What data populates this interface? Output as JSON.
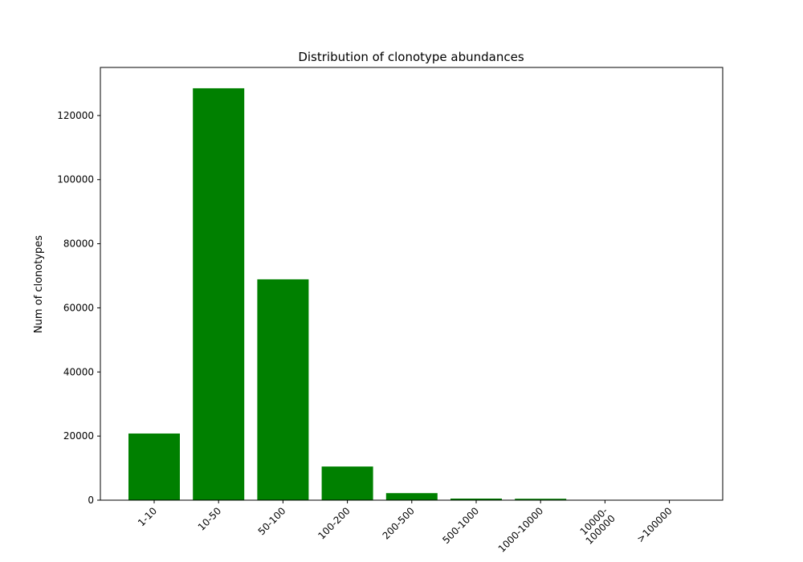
{
  "chart_data": {
    "type": "bar",
    "title": "Distribution of clonotype abundances",
    "xlabel": "",
    "ylabel": "Num of clonotypes",
    "categories": [
      "1-10",
      "10-50",
      "50-100",
      "100-200",
      "200-500",
      "500-1000",
      "1000-10000",
      "10000-\n100000",
      ">100000"
    ],
    "values": [
      20800,
      128500,
      68900,
      10500,
      2200,
      500,
      450,
      0,
      0
    ],
    "ylim": [
      0,
      135000
    ],
    "yticks": [
      0,
      20000,
      40000,
      60000,
      80000,
      100000,
      120000
    ],
    "bar_color": "#008000",
    "grid": false,
    "legend": false
  }
}
